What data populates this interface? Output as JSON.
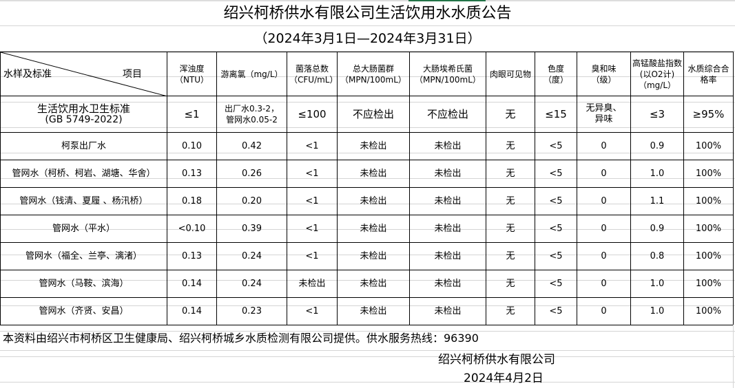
{
  "title": "绍兴柯桥供水有限公司生活饮用水水质公告",
  "subtitle": "（2024年3月1日—2024年3月31日）",
  "header": {
    "corner_left": "水样及标准",
    "corner_right": "项目",
    "columns": [
      "浑浊度（NTU）",
      "游离氯（mg/L）",
      "菌落总数（CFU/mL）",
      "总大肠菌群（MPN/100mL）",
      "大肠埃希氏菌（MPN/100mL）",
      "肉眼可见物",
      "色度（度）",
      "臭和味（级）",
      "高锰酸盐指数(以O2计)（mg/L）",
      "水质综合合格率"
    ]
  },
  "standard": {
    "name": "生活饮用水卫生标准",
    "code": "(GB 5749-2022)",
    "values": [
      "≤1",
      "出厂水0.3-2，管网水0.05-2",
      "≤100",
      "不应检出",
      "不应检出",
      "无",
      "≤15",
      "无异臭、异味",
      "≤3",
      "≥95%"
    ]
  },
  "rows": [
    {
      "name": "柯泵出厂水",
      "values": [
        "0.10",
        "0.42",
        "<1",
        "未检出",
        "未检出",
        "无",
        "<5",
        "0",
        "0.9",
        "100%"
      ]
    },
    {
      "name": "管网水（柯桥、柯岩、湖塘、华舍）",
      "values": [
        "0.13",
        "0.26",
        "<1",
        "未检出",
        "未检出",
        "无",
        "<5",
        "0",
        "1.0",
        "100%"
      ]
    },
    {
      "name": "管网水（钱清、夏履 、杨汛桥）",
      "values": [
        "0.18",
        "0.20",
        "<1",
        "未检出",
        "未检出",
        "无",
        "<5",
        "0",
        "1.1",
        "100%"
      ]
    },
    {
      "name": "管网水（平水）",
      "values": [
        "<0.10",
        "0.39",
        "<1",
        "未检出",
        "未检出",
        "无",
        "<5",
        "0",
        "0.9",
        "100%"
      ]
    },
    {
      "name": "管网水（福全、兰亭、漓渚）",
      "values": [
        "0.13",
        "0.24",
        "<1",
        "未检出",
        "未检出",
        "无",
        "<5",
        "0",
        "0.8",
        "100%"
      ]
    },
    {
      "name": "管网水（马鞍、滨海）",
      "values": [
        "0.14",
        "0.24",
        "未检出",
        "未检出",
        "未检出",
        "无",
        "<5",
        "0",
        "1.0",
        "100%"
      ]
    },
    {
      "name": "管网水（齐贤、安昌）",
      "values": [
        "0.14",
        "0.23",
        "<1",
        "未检出",
        "未检出",
        "无",
        "<5",
        "0",
        "1.0",
        "100%"
      ]
    }
  ],
  "footer": {
    "note": "本资料由绍兴市柯桥区卫生健康局、绍兴柯桥城乡水质检测有限公司提供。供水服务热线：96390",
    "company": "绍兴柯桥供水有限公司",
    "date": "2024年4月2日"
  }
}
